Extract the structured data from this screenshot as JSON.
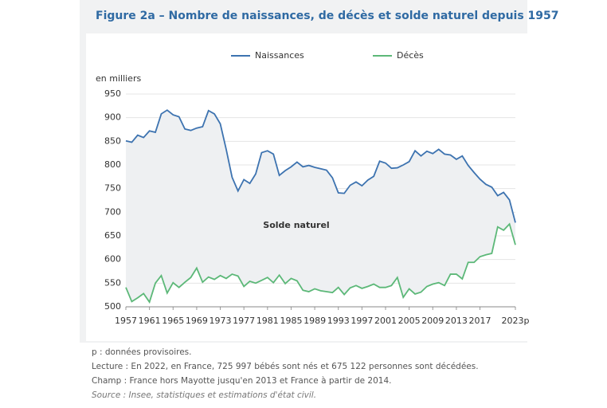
{
  "chart_data": {
    "type": "line",
    "title": "Figure 2a – Nombre de naissances, de décès et solde naturel depuis 1957",
    "y_unit": "en milliers",
    "annotation": "Solde naturel",
    "x": [
      1957,
      1958,
      1959,
      1960,
      1961,
      1962,
      1963,
      1964,
      1965,
      1966,
      1967,
      1968,
      1969,
      1970,
      1971,
      1972,
      1973,
      1974,
      1975,
      1976,
      1977,
      1978,
      1979,
      1980,
      1981,
      1982,
      1983,
      1984,
      1985,
      1986,
      1987,
      1988,
      1989,
      1990,
      1991,
      1992,
      1993,
      1994,
      1995,
      1996,
      1997,
      1998,
      1999,
      2000,
      2001,
      2002,
      2003,
      2004,
      2005,
      2006,
      2007,
      2008,
      2009,
      2010,
      2011,
      2012,
      2013,
      2014,
      2015,
      2016,
      2017,
      2018,
      2019,
      2020,
      2021,
      2022,
      2023
    ],
    "series": [
      {
        "name": "Naissances",
        "color": "#3d73b0",
        "values": [
          851,
          848,
          863,
          858,
          872,
          869,
          908,
          916,
          906,
          902,
          876,
          873,
          878,
          881,
          915,
          908,
          887,
          833,
          774,
          745,
          769,
          761,
          781,
          826,
          830,
          823,
          778,
          788,
          796,
          806,
          796,
          799,
          795,
          792,
          789,
          773,
          741,
          740,
          757,
          764,
          756,
          768,
          776,
          808,
          804,
          793,
          794,
          800,
          807,
          830,
          819,
          829,
          824,
          833,
          823,
          821,
          812,
          819,
          799,
          784,
          770,
          759,
          753,
          735,
          742,
          726,
          678
        ]
      },
      {
        "name": "Décès",
        "color": "#5cb878",
        "values": [
          541,
          511,
          519,
          528,
          510,
          550,
          566,
          529,
          551,
          541,
          552,
          562,
          582,
          552,
          563,
          558,
          566,
          560,
          569,
          565,
          543,
          554,
          550,
          556,
          562,
          551,
          567,
          549,
          560,
          555,
          535,
          532,
          538,
          534,
          532,
          530,
          541,
          526,
          540,
          545,
          539,
          543,
          548,
          541,
          541,
          545,
          562,
          520,
          538,
          527,
          531,
          543,
          548,
          551,
          545,
          569,
          569,
          559,
          594,
          594,
          606,
          610,
          613,
          669,
          662,
          675,
          631
        ]
      }
    ],
    "xlim": [
      1957,
      2023
    ],
    "xticks": [
      1957,
      1961,
      1965,
      1969,
      1973,
      1977,
      1981,
      1985,
      1989,
      1993,
      1997,
      2001,
      2005,
      2009,
      2013,
      2017,
      {
        "value": 2023,
        "label": "2023p"
      }
    ],
    "ylim": [
      500,
      950
    ],
    "yticks": [
      500,
      550,
      600,
      650,
      700,
      750,
      800,
      850,
      900,
      950
    ],
    "grid": true,
    "legend": "top"
  },
  "notes": [
    "p : données provisoires.",
    "Lecture : En 2022, en France, 725 997 bébés sont nés et 675 122 personnes sont décédées.",
    "Champ : France hors Mayotte jusqu'en 2013 et France à partir de 2014.",
    "Source : Insee, statistiques et estimations d'état civil."
  ]
}
